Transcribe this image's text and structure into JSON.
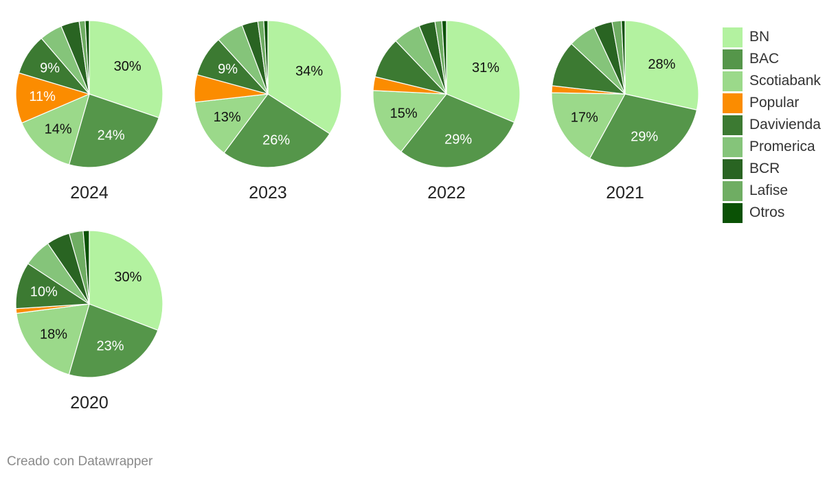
{
  "chart_data": {
    "type": "pie",
    "legend_position": "right",
    "categories": [
      "BN",
      "BAC",
      "Scotiabank",
      "Popular",
      "Davivienda",
      "Promerica",
      "BCR",
      "Lafise",
      "Otros"
    ],
    "colors": [
      "#b3f2a0",
      "#55964a",
      "#9bd98a",
      "#fb8c00",
      "#3c7a32",
      "#85c47a",
      "#296422",
      "#6fad63",
      "#0a5105"
    ],
    "label_colors": [
      "#111111",
      "#ffffff",
      "#111111",
      "#ffffff",
      "#ffffff",
      "#111111",
      "#ffffff",
      "#111111",
      "#ffffff"
    ],
    "charts": [
      {
        "title": "2024",
        "values": [
          30,
          24,
          14,
          11,
          9,
          5,
          4,
          1.3,
          0.9
        ],
        "labels": [
          "30%",
          "24%",
          "14%",
          "11%",
          "9%",
          "",
          "",
          "",
          ""
        ]
      },
      {
        "title": "2023",
        "values": [
          34,
          26,
          13,
          6,
          9,
          6,
          3.5,
          1.3,
          0.9
        ],
        "labels": [
          "34%",
          "26%",
          "13%",
          "",
          "9%",
          "",
          "",
          "",
          ""
        ]
      },
      {
        "title": "2022",
        "values": [
          31,
          29,
          15,
          3,
          9,
          6,
          3.5,
          1.5,
          1.0
        ],
        "labels": [
          "31%",
          "29%",
          "15%",
          "",
          "",
          "",
          "",
          "",
          ""
        ]
      },
      {
        "title": "2021",
        "values": [
          28,
          29,
          17,
          1.5,
          10,
          6,
          4,
          2,
          0.8
        ],
        "labels": [
          "28%",
          "29%",
          "17%",
          "",
          "",
          "",
          "",
          "",
          ""
        ]
      },
      {
        "title": "2020",
        "values": [
          30,
          23,
          18,
          1,
          10,
          6,
          5,
          3,
          1.3
        ],
        "labels": [
          "30%",
          "23%",
          "18%",
          "",
          "10%",
          "",
          "",
          "",
          ""
        ]
      }
    ]
  },
  "footer": {
    "credit": "Creado con Datawrapper"
  }
}
